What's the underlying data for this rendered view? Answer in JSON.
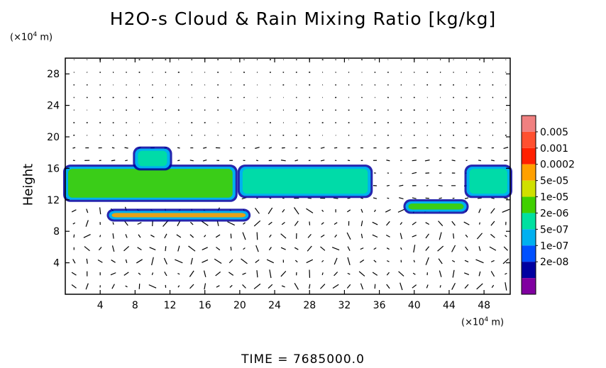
{
  "chart_data": {
    "type": "heatmap",
    "title": "H2O-s Cloud & Rain Mixing Ratio [kg/kg]",
    "ylabel": "Height",
    "y_unit": "(×10⁴ m)",
    "x_unit": "(×10⁴ m)",
    "footer": "TIME  =  7685000.0",
    "xlim": [
      0,
      51
    ],
    "ylim": [
      0,
      30
    ],
    "x_ticks": [
      4,
      8,
      12,
      16,
      20,
      24,
      28,
      32,
      36,
      40,
      44,
      48
    ],
    "y_ticks": [
      4,
      8,
      12,
      16,
      20,
      24,
      28
    ],
    "colorbar": {
      "levels": [
        "0.005",
        "0.001",
        "0.0002",
        "5e-05",
        "1e-05",
        "2e-06",
        "5e-07",
        "1e-07",
        "2e-08"
      ],
      "colors": [
        "#f08080",
        "#ff5030",
        "#ff2000",
        "#ffa000",
        "#d0e000",
        "#40d000",
        "#00e0a0",
        "#00b0f0",
        "#0050ff",
        "#0000a0",
        "#8000a0"
      ]
    },
    "cloud_regions": [
      {
        "x0": 0,
        "x1": 19.5,
        "y0": 12,
        "y1": 16.2,
        "level": "1e-05"
      },
      {
        "x0": 8,
        "x1": 12,
        "y0": 16,
        "y1": 18.5,
        "level": "2e-06"
      },
      {
        "x0": 20,
        "x1": 35,
        "y0": 12.5,
        "y1": 16.2,
        "level": "2e-06"
      },
      {
        "x0": 5,
        "x1": 21,
        "y0": 9.5,
        "y1": 10.6,
        "level": "0.0002"
      },
      {
        "x0": 39,
        "x1": 46,
        "y0": 10.5,
        "y1": 11.8,
        "level": "1e-05"
      },
      {
        "x0": 46,
        "x1": 51,
        "y0": 12.5,
        "y1": 16.2,
        "level": "2e-06"
      }
    ]
  }
}
